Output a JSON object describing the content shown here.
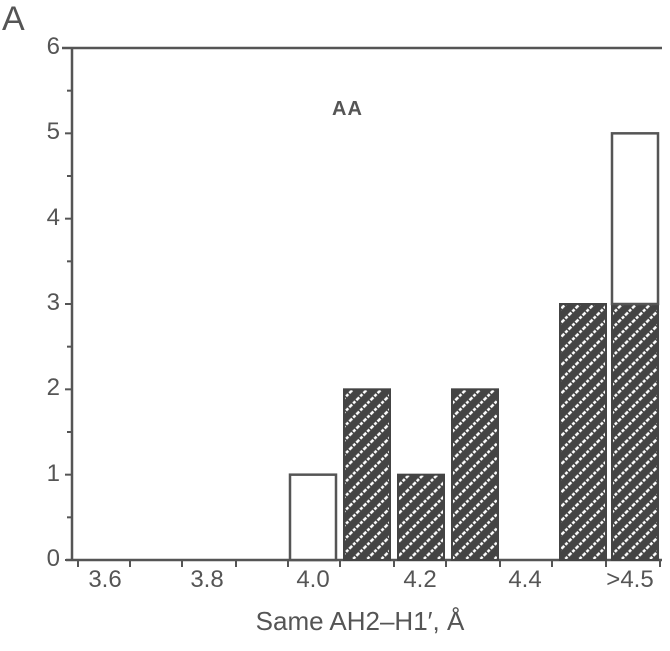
{
  "panel_label": "A",
  "chart_data": {
    "type": "bar",
    "title": "",
    "annotation": "AA",
    "xlabel": "Same AH2–H1′, Å",
    "ylabel": "",
    "ylim": [
      0,
      6
    ],
    "yticks": [
      "0",
      "1",
      "2",
      "3",
      "4",
      "5",
      "6"
    ],
    "xtick_labels": [
      "3.6",
      "3.8",
      "4.0",
      "4.2",
      "4.4",
      ">4.5"
    ],
    "grid": false,
    "legend": null,
    "bins": [
      "4.0",
      "4.1",
      "4.2",
      "4.3",
      "4.4",
      "4.5",
      ">4.5"
    ],
    "series": [
      {
        "name": "hatched",
        "style": "diagonal-hatch",
        "values": [
          0,
          2,
          1,
          2,
          0,
          3,
          3
        ]
      },
      {
        "name": "open",
        "style": "open",
        "values": [
          1,
          0,
          0,
          0,
          0,
          0,
          2
        ]
      }
    ],
    "stacked": true
  },
  "colors": {
    "axis": "#555555",
    "bar_fill_dark": "#444444",
    "hatch": "#ffffff",
    "open_fill": "#ffffff"
  }
}
